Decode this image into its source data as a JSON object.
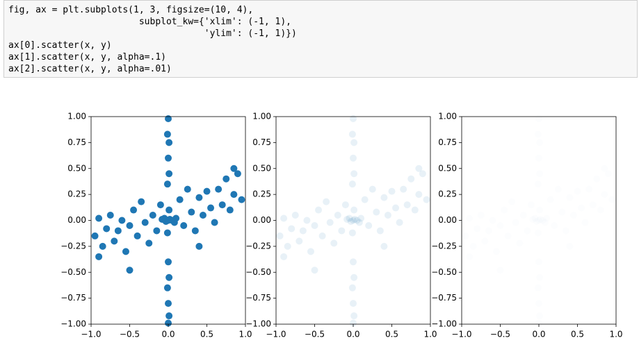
{
  "code": {
    "lines": [
      "fig, ax = plt.subplots(1, 3, figsize=(10, 4),",
      "                        subplot_kw={'xlim': (-1, 1),",
      "                                    'ylim': (-1, 1)})",
      "ax[0].scatter(x, y)",
      "ax[1].scatter(x, y, alpha=.1)",
      "ax[2].scatter(x, y, alpha=.01)"
    ]
  },
  "chart_data": [
    {
      "type": "scatter",
      "color": "#1f77b4",
      "alpha": 1,
      "x": [
        -0.95,
        -0.9,
        -0.85,
        -0.8,
        -0.75,
        -0.7,
        -0.65,
        -0.6,
        -0.55,
        -0.5,
        -0.45,
        -0.4,
        -0.35,
        -0.3,
        -0.25,
        -0.2,
        -0.15,
        -0.1,
        0.1,
        0.15,
        0.2,
        0.25,
        0.3,
        0.35,
        0.4,
        0.45,
        0.5,
        0.55,
        0.6,
        0.65,
        0.7,
        0.75,
        0.8,
        0.85,
        0.9,
        0.95,
        -0.9,
        -0.5,
        0.4,
        0.85,
        0,
        -0.01,
        0.01,
        0,
        0.01,
        -0.01,
        0,
        0.01,
        -0.01,
        0,
        0.01,
        0,
        0,
        0.02,
        -0.03,
        0.05,
        -0.05,
        0.01,
        -0.01,
        0.08,
        -0.08
      ],
      "y": [
        -0.15,
        0.02,
        -0.25,
        -0.08,
        0.05,
        -0.2,
        -0.1,
        0,
        -0.3,
        -0.05,
        0.1,
        -0.15,
        0.18,
        -0.02,
        -0.22,
        0.05,
        -0.1,
        0.15,
        0.02,
        0.2,
        -0.05,
        0.3,
        0.08,
        -0.1,
        0.22,
        0.05,
        0.28,
        0.12,
        -0.02,
        0.3,
        0.15,
        0.4,
        0.1,
        0.25,
        0.45,
        0.2,
        -0.35,
        -0.48,
        -0.25,
        0.5,
        0.98,
        0.83,
        0.75,
        0.6,
        0.45,
        0.35,
        -0.4,
        -0.55,
        -0.65,
        -0.8,
        -0.92,
        -0.99,
        0,
        0.01,
        -0.01,
        0,
        0.02,
        0.1,
        -0.12,
        -0.02,
        0.01
      ],
      "xlim": [
        -1,
        1
      ],
      "ylim": [
        -1,
        1
      ],
      "xticks": [
        {
          "value": -1,
          "label": "−1.0"
        },
        {
          "value": -0.5,
          "label": "−0.5"
        },
        {
          "value": 0,
          "label": "0.0"
        },
        {
          "value": 0.5,
          "label": "0.5"
        },
        {
          "value": 1,
          "label": "1.0"
        }
      ],
      "yticks": [
        {
          "value": -1,
          "label": "−1.00"
        },
        {
          "value": -0.75,
          "label": "−0.75"
        },
        {
          "value": -0.5,
          "label": "−0.50"
        },
        {
          "value": -0.25,
          "label": "−0.25"
        },
        {
          "value": 0,
          "label": "0.00"
        },
        {
          "value": 0.25,
          "label": "0.25"
        },
        {
          "value": 0.5,
          "label": "0.50"
        },
        {
          "value": 0.75,
          "label": "0.75"
        },
        {
          "value": 1,
          "label": "1.00"
        }
      ]
    },
    {
      "type": "scatter",
      "color": "#1f77b4",
      "alpha": 0.1,
      "x": [
        -0.95,
        -0.9,
        -0.85,
        -0.8,
        -0.75,
        -0.7,
        -0.65,
        -0.6,
        -0.55,
        -0.5,
        -0.45,
        -0.4,
        -0.35,
        -0.3,
        -0.25,
        -0.2,
        -0.15,
        -0.1,
        0.1,
        0.15,
        0.2,
        0.25,
        0.3,
        0.35,
        0.4,
        0.45,
        0.5,
        0.55,
        0.6,
        0.65,
        0.7,
        0.75,
        0.8,
        0.85,
        0.9,
        0.95,
        -0.9,
        -0.5,
        0.4,
        0.85,
        0,
        -0.01,
        0.01,
        0,
        0.01,
        -0.01,
        0,
        0.01,
        -0.01,
        0,
        0.01,
        0,
        0,
        0.02,
        -0.03,
        0.05,
        -0.05,
        0.01,
        -0.01,
        0.08,
        -0.08
      ],
      "y": [
        -0.15,
        0.02,
        -0.25,
        -0.08,
        0.05,
        -0.2,
        -0.1,
        0,
        -0.3,
        -0.05,
        0.1,
        -0.15,
        0.18,
        -0.02,
        -0.22,
        0.05,
        -0.1,
        0.15,
        0.02,
        0.2,
        -0.05,
        0.3,
        0.08,
        -0.1,
        0.22,
        0.05,
        0.28,
        0.12,
        -0.02,
        0.3,
        0.15,
        0.4,
        0.1,
        0.25,
        0.45,
        0.2,
        -0.35,
        -0.48,
        -0.25,
        0.5,
        0.98,
        0.83,
        0.75,
        0.6,
        0.45,
        0.35,
        -0.4,
        -0.55,
        -0.65,
        -0.8,
        -0.92,
        -0.99,
        0,
        0.01,
        -0.01,
        0,
        0.02,
        0.1,
        -0.12,
        -0.02,
        0.01
      ],
      "xlim": [
        -1,
        1
      ],
      "ylim": [
        -1,
        1
      ],
      "xticks": [
        {
          "value": -1,
          "label": "−1.0"
        },
        {
          "value": -0.5,
          "label": "−0.5"
        },
        {
          "value": 0,
          "label": "0.0"
        },
        {
          "value": 0.5,
          "label": "0.5"
        },
        {
          "value": 1,
          "label": "1.0"
        }
      ],
      "yticks": [
        {
          "value": -1,
          "label": "−1.00"
        },
        {
          "value": -0.75,
          "label": "−0.75"
        },
        {
          "value": -0.5,
          "label": "−0.50"
        },
        {
          "value": -0.25,
          "label": "−0.25"
        },
        {
          "value": 0,
          "label": "0.00"
        },
        {
          "value": 0.25,
          "label": "0.25"
        },
        {
          "value": 0.5,
          "label": "0.50"
        },
        {
          "value": 0.75,
          "label": "0.75"
        },
        {
          "value": 1,
          "label": "1.00"
        }
      ]
    },
    {
      "type": "scatter",
      "color": "#1f77b4",
      "alpha": 0.01,
      "x": [
        -0.95,
        -0.9,
        -0.85,
        -0.8,
        -0.75,
        -0.7,
        -0.65,
        -0.6,
        -0.55,
        -0.5,
        -0.45,
        -0.4,
        -0.35,
        -0.3,
        -0.25,
        -0.2,
        -0.15,
        -0.1,
        0.1,
        0.15,
        0.2,
        0.25,
        0.3,
        0.35,
        0.4,
        0.45,
        0.5,
        0.55,
        0.6,
        0.65,
        0.7,
        0.75,
        0.8,
        0.85,
        0.9,
        0.95,
        -0.9,
        -0.5,
        0.4,
        0.85,
        0,
        -0.01,
        0.01,
        0,
        0.01,
        -0.01,
        0,
        0.01,
        -0.01,
        0,
        0.01,
        0,
        0,
        0.02,
        -0.03,
        0.05,
        -0.05,
        0.01,
        -0.01,
        0.08,
        -0.08
      ],
      "y": [
        -0.15,
        0.02,
        -0.25,
        -0.08,
        0.05,
        -0.2,
        -0.1,
        0,
        -0.3,
        -0.05,
        0.1,
        -0.15,
        0.18,
        -0.02,
        -0.22,
        0.05,
        -0.1,
        0.15,
        0.02,
        0.2,
        -0.05,
        0.3,
        0.08,
        -0.1,
        0.22,
        0.05,
        0.28,
        0.12,
        -0.02,
        0.3,
        0.15,
        0.4,
        0.1,
        0.25,
        0.45,
        0.2,
        -0.35,
        -0.48,
        -0.25,
        0.5,
        0.98,
        0.83,
        0.75,
        0.6,
        0.45,
        0.35,
        -0.4,
        -0.55,
        -0.65,
        -0.8,
        -0.92,
        -0.99,
        0,
        0.01,
        -0.01,
        0,
        0.02,
        0.1,
        -0.12,
        -0.02,
        0.01
      ],
      "xlim": [
        -1,
        1
      ],
      "ylim": [
        -1,
        1
      ],
      "xticks": [
        {
          "value": -1,
          "label": "−1.0"
        },
        {
          "value": -0.5,
          "label": "−0.5"
        },
        {
          "value": 0,
          "label": "0.0"
        },
        {
          "value": 0.5,
          "label": "0.5"
        },
        {
          "value": 1,
          "label": "1.0"
        }
      ],
      "yticks": [
        {
          "value": -1,
          "label": "−1.00"
        },
        {
          "value": -0.75,
          "label": "−0.75"
        },
        {
          "value": -0.5,
          "label": "−0.50"
        },
        {
          "value": -0.25,
          "label": "−0.25"
        },
        {
          "value": 0,
          "label": "0.00"
        },
        {
          "value": 0.25,
          "label": "0.25"
        },
        {
          "value": 0.5,
          "label": "0.50"
        },
        {
          "value": 0.75,
          "label": "0.75"
        },
        {
          "value": 1,
          "label": "1.00"
        }
      ]
    }
  ]
}
